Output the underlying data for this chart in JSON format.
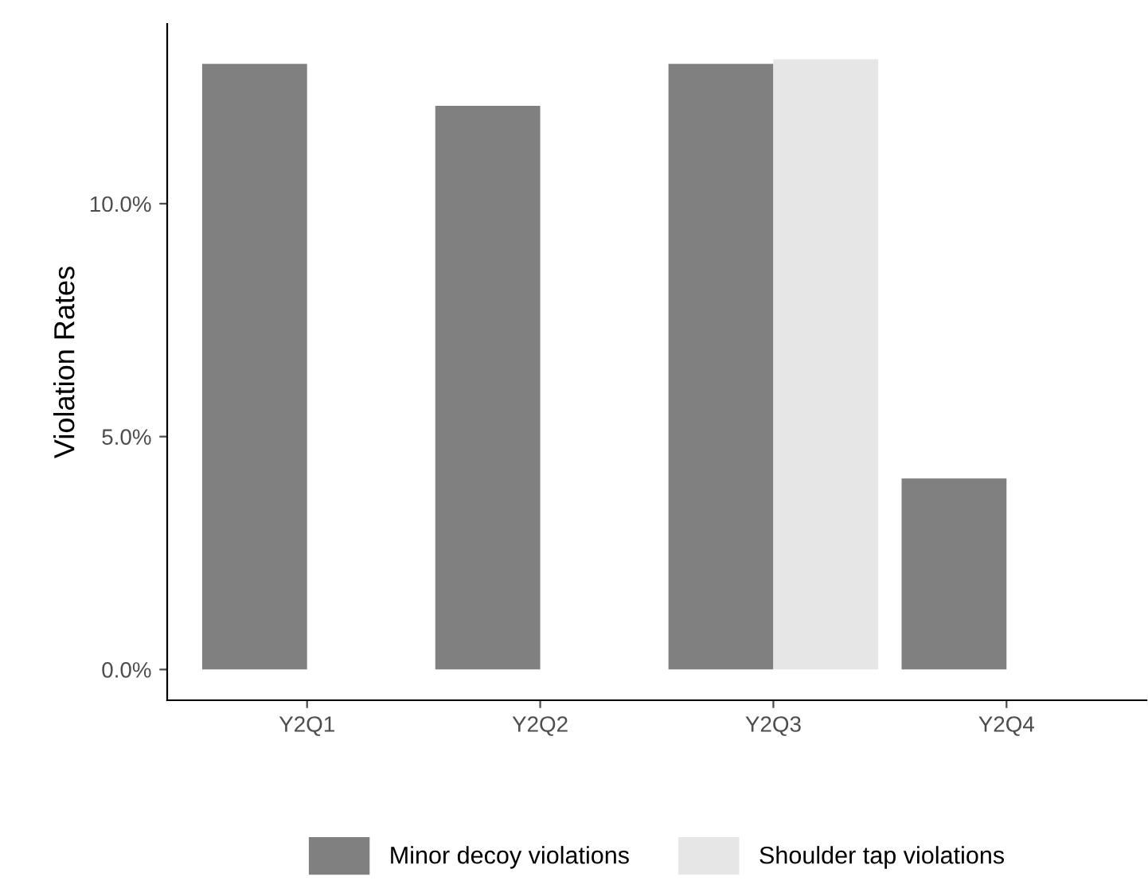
{
  "chart_data": {
    "type": "bar",
    "ylabel": "Violation Rates",
    "categories": [
      "Y2Q1",
      "Y2Q2",
      "Y2Q3",
      "Y2Q4"
    ],
    "series": [
      {
        "name": "Minor decoy violations",
        "color": "#808080",
        "values": [
          13.0,
          12.1,
          13.0,
          4.1
        ]
      },
      {
        "name": "Shoulder tap violations",
        "color": "#e6e6e6",
        "values": [
          null,
          null,
          13.1,
          null
        ]
      }
    ],
    "ylim": [
      -0.66,
      13.86
    ],
    "yticks": [
      {
        "value": 0,
        "label": "0.0%"
      },
      {
        "value": 5,
        "label": "5.0%"
      },
      {
        "value": 10,
        "label": "10.0%"
      }
    ],
    "grid": false,
    "legend": "bottom"
  }
}
